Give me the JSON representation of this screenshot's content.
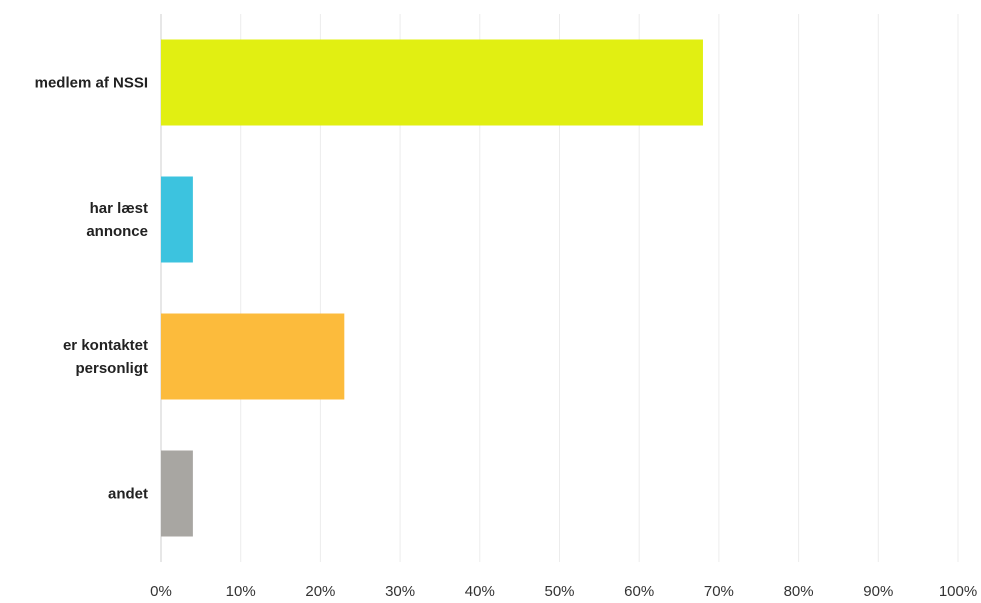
{
  "chart_data": {
    "type": "bar",
    "orientation": "horizontal",
    "categories": [
      [
        "medlem af NSSI"
      ],
      [
        "har læst",
        "annonce"
      ],
      [
        "er kontaktet",
        "personligt"
      ],
      [
        "andet"
      ]
    ],
    "values": [
      68,
      4,
      23,
      4
    ],
    "colors": [
      "#e1ef12",
      "#3cc3df",
      "#fcbb3c",
      "#a8a6a2"
    ],
    "xlim": [
      0,
      100
    ],
    "x_ticks": [
      "0%",
      "10%",
      "20%",
      "30%",
      "40%",
      "50%",
      "60%",
      "70%",
      "80%",
      "90%",
      "100%"
    ],
    "grid": true,
    "legend": "none"
  }
}
